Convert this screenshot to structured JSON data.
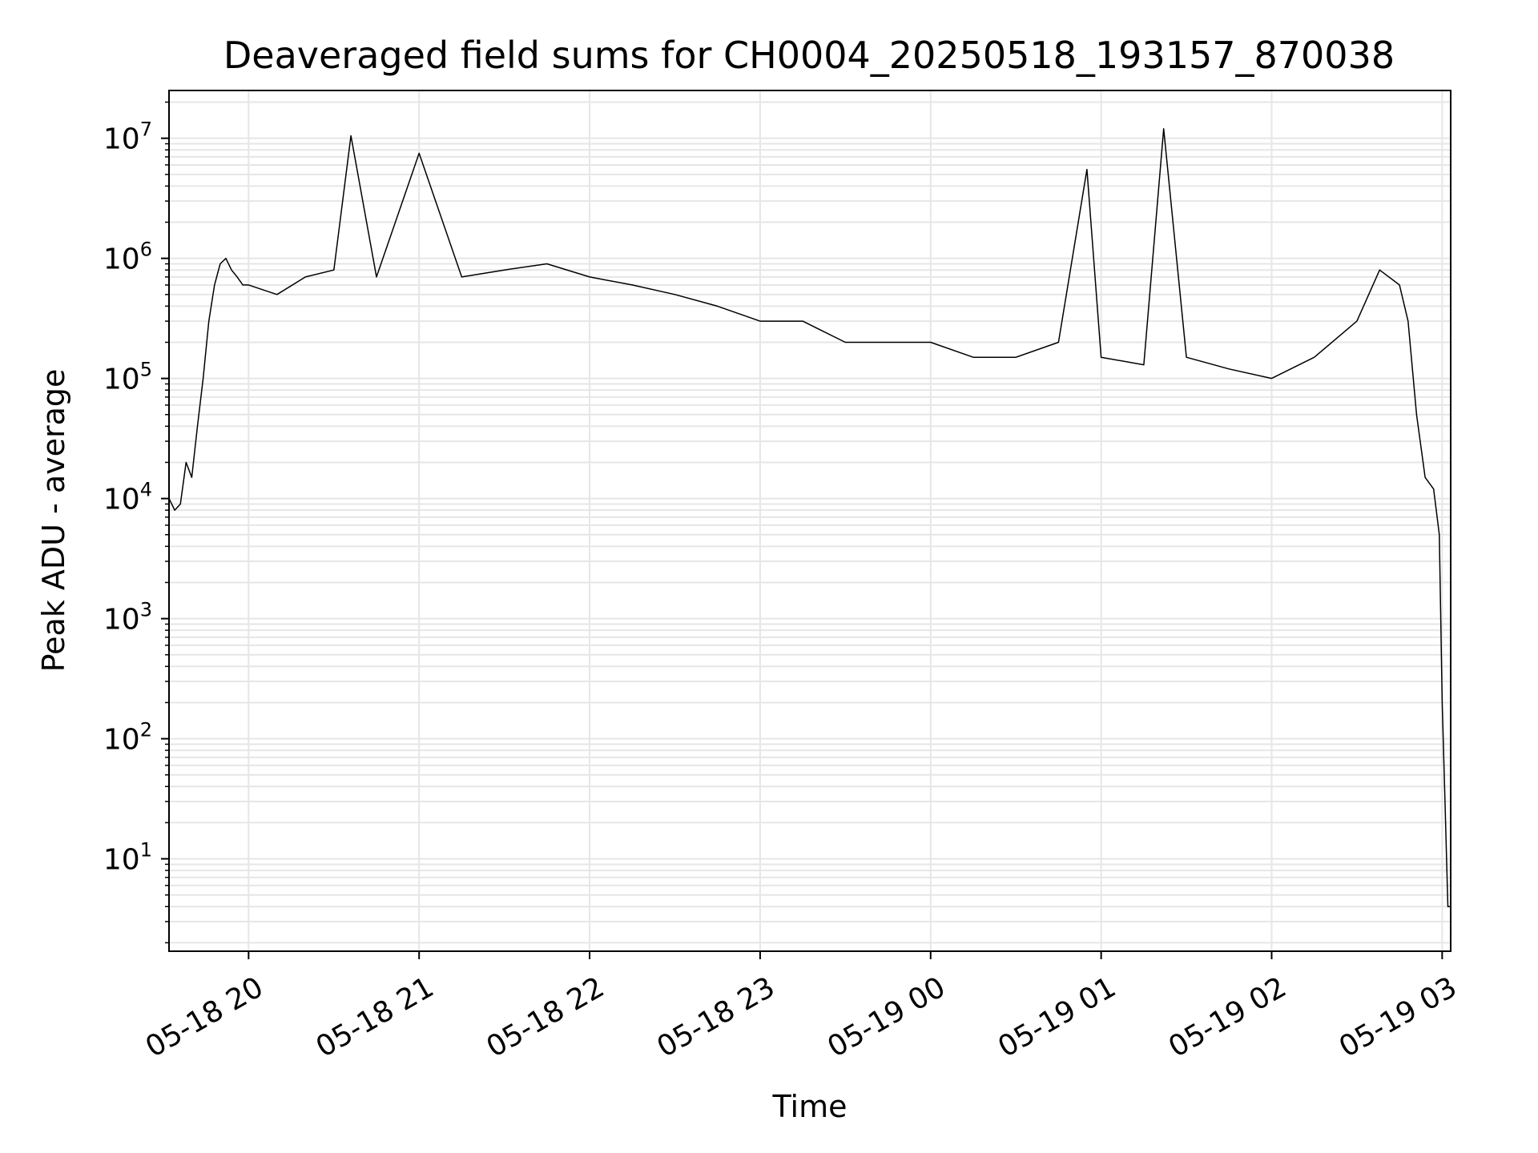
{
  "chart_data": {
    "type": "line",
    "title": "Deaveraged field sums for CH0004_20250518_193157_870038",
    "xlabel": "Time",
    "ylabel": "Peak ADU - average",
    "yscale": "log",
    "grid": true,
    "line_color": "#000000",
    "grid_color": "#e6e6e6",
    "xlim": [
      "2025-05-18 19:32",
      "2025-05-19 03:03"
    ],
    "ylim": [
      1.7,
      25000000
    ],
    "x_ticks": [
      {
        "label": "05-18 20",
        "t": "2025-05-18 20:00"
      },
      {
        "label": "05-18 21",
        "t": "2025-05-18 21:00"
      },
      {
        "label": "05-18 22",
        "t": "2025-05-18 22:00"
      },
      {
        "label": "05-18 23",
        "t": "2025-05-18 23:00"
      },
      {
        "label": "05-19 00",
        "t": "2025-05-19 00:00"
      },
      {
        "label": "05-19 01",
        "t": "2025-05-19 01:00"
      },
      {
        "label": "05-19 02",
        "t": "2025-05-19 02:00"
      },
      {
        "label": "05-19 03",
        "t": "2025-05-19 03:00"
      }
    ],
    "y_ticks": [
      {
        "base": "10",
        "exp": "1",
        "value": 10
      },
      {
        "base": "10",
        "exp": "2",
        "value": 100
      },
      {
        "base": "10",
        "exp": "3",
        "value": 1000
      },
      {
        "base": "10",
        "exp": "4",
        "value": 10000
      },
      {
        "base": "10",
        "exp": "5",
        "value": 100000
      },
      {
        "base": "10",
        "exp": "6",
        "value": 1000000
      },
      {
        "base": "10",
        "exp": "7",
        "value": 10000000
      }
    ],
    "series": [
      {
        "x": [
          "2025-05-18 19:32",
          "2025-05-18 19:34",
          "2025-05-18 19:36",
          "2025-05-18 19:38",
          "2025-05-18 19:40",
          "2025-05-18 19:42",
          "2025-05-18 19:44",
          "2025-05-18 19:46",
          "2025-05-18 19:48",
          "2025-05-18 19:50",
          "2025-05-18 19:52",
          "2025-05-18 19:54",
          "2025-05-18 19:56",
          "2025-05-18 19:58",
          "2025-05-18 20:00",
          "2025-05-18 20:10",
          "2025-05-18 20:20",
          "2025-05-18 20:30",
          "2025-05-18 20:36",
          "2025-05-18 20:45",
          "2025-05-18 21:00",
          "2025-05-18 21:15",
          "2025-05-18 21:30",
          "2025-05-18 21:45",
          "2025-05-18 22:00",
          "2025-05-18 22:15",
          "2025-05-18 22:30",
          "2025-05-18 22:45",
          "2025-05-18 23:00",
          "2025-05-18 23:15",
          "2025-05-18 23:30",
          "2025-05-18 23:45",
          "2025-05-19 00:00",
          "2025-05-19 00:15",
          "2025-05-19 00:30",
          "2025-05-19 00:45",
          "2025-05-19 00:55",
          "2025-05-19 01:00",
          "2025-05-19 01:15",
          "2025-05-19 01:22",
          "2025-05-19 01:30",
          "2025-05-19 01:45",
          "2025-05-19 02:00",
          "2025-05-19 02:15",
          "2025-05-19 02:30",
          "2025-05-19 02:38",
          "2025-05-19 02:45",
          "2025-05-19 02:48",
          "2025-05-19 02:51",
          "2025-05-19 02:54",
          "2025-05-19 02:57",
          "2025-05-19 02:59",
          "2025-05-19 03:00",
          "2025-05-19 03:01",
          "2025-05-19 03:02",
          "2025-05-19 03:03"
        ],
        "y": [
          10000,
          8000,
          9000,
          20000,
          15000,
          40000,
          100000,
          300000,
          600000,
          900000,
          1000000,
          800000,
          700000,
          600000,
          600000,
          500000,
          700000,
          800000,
          10500000,
          700000,
          7500000,
          700000,
          800000,
          900000,
          700000,
          600000,
          500000,
          400000,
          300000,
          300000,
          200000,
          200000,
          200000,
          150000,
          150000,
          200000,
          5500000,
          150000,
          130000,
          12000000,
          150000,
          120000,
          100000,
          150000,
          300000,
          800000,
          600000,
          300000,
          50000,
          15000,
          12000,
          5000,
          200,
          30,
          4,
          4
        ]
      }
    ]
  }
}
